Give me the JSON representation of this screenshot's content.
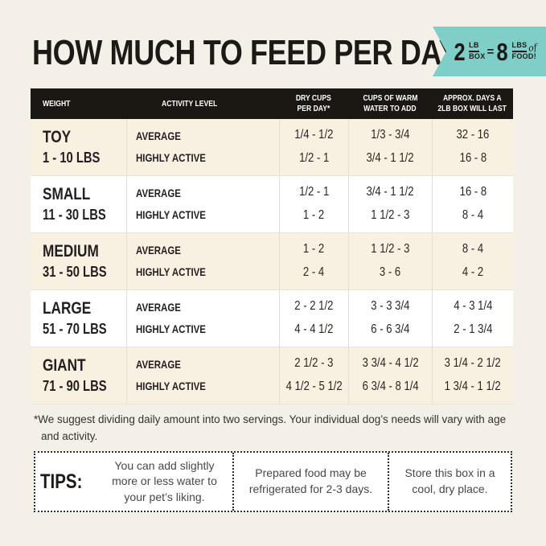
{
  "page": {
    "title": "HOW MUCH TO FEED PER DAY",
    "background_color": "#f4f0e8"
  },
  "badge": {
    "color": "#7fcec8",
    "big_left": "2",
    "left_top": "LB",
    "left_bottom": "BOX",
    "equals": "=",
    "big_right": "8",
    "right_top": "LBS",
    "right_script": "of",
    "right_bottom": "FOOD!"
  },
  "table": {
    "header_bg": "#1b1713",
    "row_cream": "#f8f1e1",
    "headers": {
      "weight": "WEIGHT",
      "activity": "ACTIVITY LEVEL",
      "dry_cups_1": "DRY CUPS",
      "dry_cups_2": "PER DAY*",
      "water_1": "CUPS OF WARM",
      "water_2": "WATER TO ADD",
      "days_1": "APPROX. DAYS A",
      "days_2": "2LB BOX WILL LAST"
    },
    "rows": [
      {
        "name": "TOY",
        "range": "1 - 10 LBS",
        "activity_1": "AVERAGE",
        "activity_2": "HIGHLY ACTIVE",
        "cups_1": "1/4 - 1/2",
        "cups_2": "1/2 - 1",
        "water_1": "1/3 - 3/4",
        "water_2": "3/4 - 1 1/2",
        "days_1": "32 - 16",
        "days_2": "16 - 8"
      },
      {
        "name": "SMALL",
        "range": "11 - 30 LBS",
        "activity_1": "AVERAGE",
        "activity_2": "HIGHLY ACTIVE",
        "cups_1": "1/2 - 1",
        "cups_2": "1 - 2",
        "water_1": "3/4 - 1 1/2",
        "water_2": "1 1/2 - 3",
        "days_1": "16 - 8",
        "days_2": "8 - 4"
      },
      {
        "name": "MEDIUM",
        "range": "31 - 50 LBS",
        "activity_1": "AVERAGE",
        "activity_2": "HIGHLY ACTIVE",
        "cups_1": "1 - 2",
        "cups_2": "2 - 4",
        "water_1": "1 1/2 - 3",
        "water_2": "3 - 6",
        "days_1": "8 - 4",
        "days_2": "4 - 2"
      },
      {
        "name": "LARGE",
        "range": "51 - 70 LBS",
        "activity_1": "AVERAGE",
        "activity_2": "HIGHLY ACTIVE",
        "cups_1": "2 - 2 1/2",
        "cups_2": "4 - 4 1/2",
        "water_1": "3 - 3 3/4",
        "water_2": "6 - 6 3/4",
        "days_1": "4 - 3 1/4",
        "days_2": "2 - 1 3/4"
      },
      {
        "name": "GIANT",
        "range": "71 - 90 LBS",
        "activity_1": "AVERAGE",
        "activity_2": "HIGHLY ACTIVE",
        "cups_1": "2 1/2 - 3",
        "cups_2": "4 1/2 - 5 1/2",
        "water_1": "3 3/4 - 4 1/2",
        "water_2": "6 3/4 - 8 1/4",
        "days_1": "3 1/4 - 2 1/2",
        "days_2": "1 3/4 - 1 1/2"
      }
    ]
  },
  "footnote": "*We suggest dividing daily amount into two servings. Your individual dog’s needs will vary with age and activity.",
  "tips": {
    "label": "TIPS:",
    "items": [
      "You can add slightly more or less water to your pet’s liking.",
      "Prepared food may be refrigerated for 2-3 days.",
      "Store this box in a cool, dry place."
    ]
  }
}
